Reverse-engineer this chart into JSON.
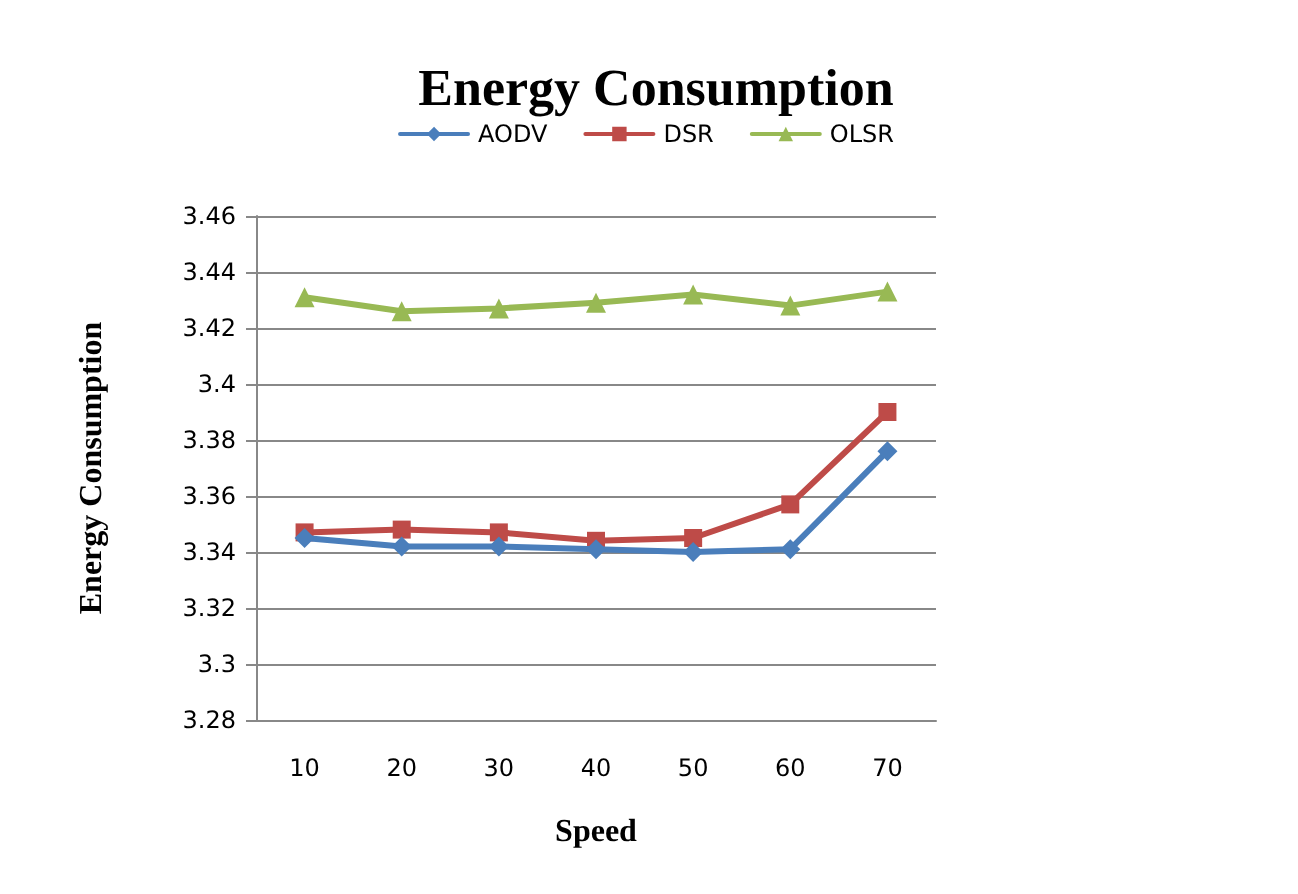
{
  "chart_data": {
    "type": "line",
    "title": "Energy Consumption",
    "xlabel": "Speed",
    "ylabel": "Energy Consumption",
    "categories": [
      "10",
      "20",
      "30",
      "40",
      "50",
      "60",
      "70"
    ],
    "series": [
      {
        "name": "AODV",
        "color": "#4a7ebb",
        "marker": "diamond",
        "values": [
          3.345,
          3.342,
          3.342,
          3.341,
          3.34,
          3.341,
          3.376
        ]
      },
      {
        "name": "DSR",
        "color": "#be4b48",
        "marker": "square",
        "values": [
          3.347,
          3.348,
          3.347,
          3.344,
          3.345,
          3.357,
          3.39
        ]
      },
      {
        "name": "OLSR",
        "color": "#98b954",
        "marker": "triangle",
        "values": [
          3.431,
          3.426,
          3.427,
          3.429,
          3.432,
          3.428,
          3.433
        ]
      }
    ],
    "ylim": [
      3.28,
      3.46
    ],
    "yticks": [
      3.28,
      3.3,
      3.32,
      3.34,
      3.36,
      3.38,
      3.4,
      3.42,
      3.44,
      3.46
    ],
    "grid": "y",
    "legend": "top",
    "line_style": "solid"
  }
}
